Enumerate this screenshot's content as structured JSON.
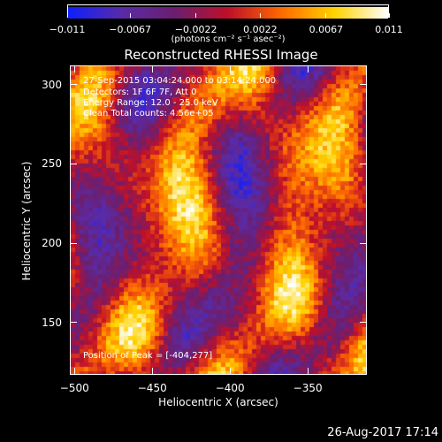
{
  "colorbar": {
    "tick_labels": [
      "−0.011",
      "−0.0067",
      "−0.0022",
      "0.0022",
      "0.0067",
      "0.011"
    ],
    "units": "(photons cm⁻² s⁻¹ asec⁻²)",
    "colors": [
      "#1020ff",
      "#5a2ca8",
      "#6b1f70",
      "#c0102a",
      "#ff6a00",
      "#ffd400",
      "#ffffff"
    ]
  },
  "title": "Reconstructed RHESSI Image",
  "annotations": {
    "time_range": "27-Sep-2015 03:04:24.000 to 03:14:24.000",
    "detectors": "Detectors: 1F 6F 7F, Att 0",
    "energy": "Energy Range: 12.0 - 25.0 keV",
    "clean": "Clean    Total counts: 4.56e+05",
    "peak": "Position of Peak = [-404,277]"
  },
  "chart_data": {
    "type": "heatmap",
    "title": "Reconstructed RHESSI Image",
    "xlabel": "Heliocentric X (arcsec)",
    "ylabel": "Heliocentric Y (arcsec)",
    "xlim": [
      -503,
      -312
    ],
    "ylim": [
      117,
      312
    ],
    "x_ticks": [
      -500,
      -450,
      -400,
      -350
    ],
    "y_ticks": [
      150,
      200,
      250,
      300
    ],
    "colorbar_range": [
      -0.011,
      0.011
    ],
    "colorbar_ticks": [
      -0.011,
      -0.0067,
      -0.0022,
      0.0022,
      0.0067,
      0.011
    ],
    "peak_position": [
      -404,
      277
    ]
  },
  "axes": {
    "xlabel": "Heliocentric X (arcsec)",
    "ylabel": "Heliocentric Y (arcsec)",
    "x_tick_labels": [
      "−500",
      "−450",
      "−400",
      "−350"
    ],
    "y_tick_labels": [
      "300",
      "250",
      "200",
      "150"
    ]
  },
  "footer": {
    "date": "26-Aug-2017 17:14"
  }
}
